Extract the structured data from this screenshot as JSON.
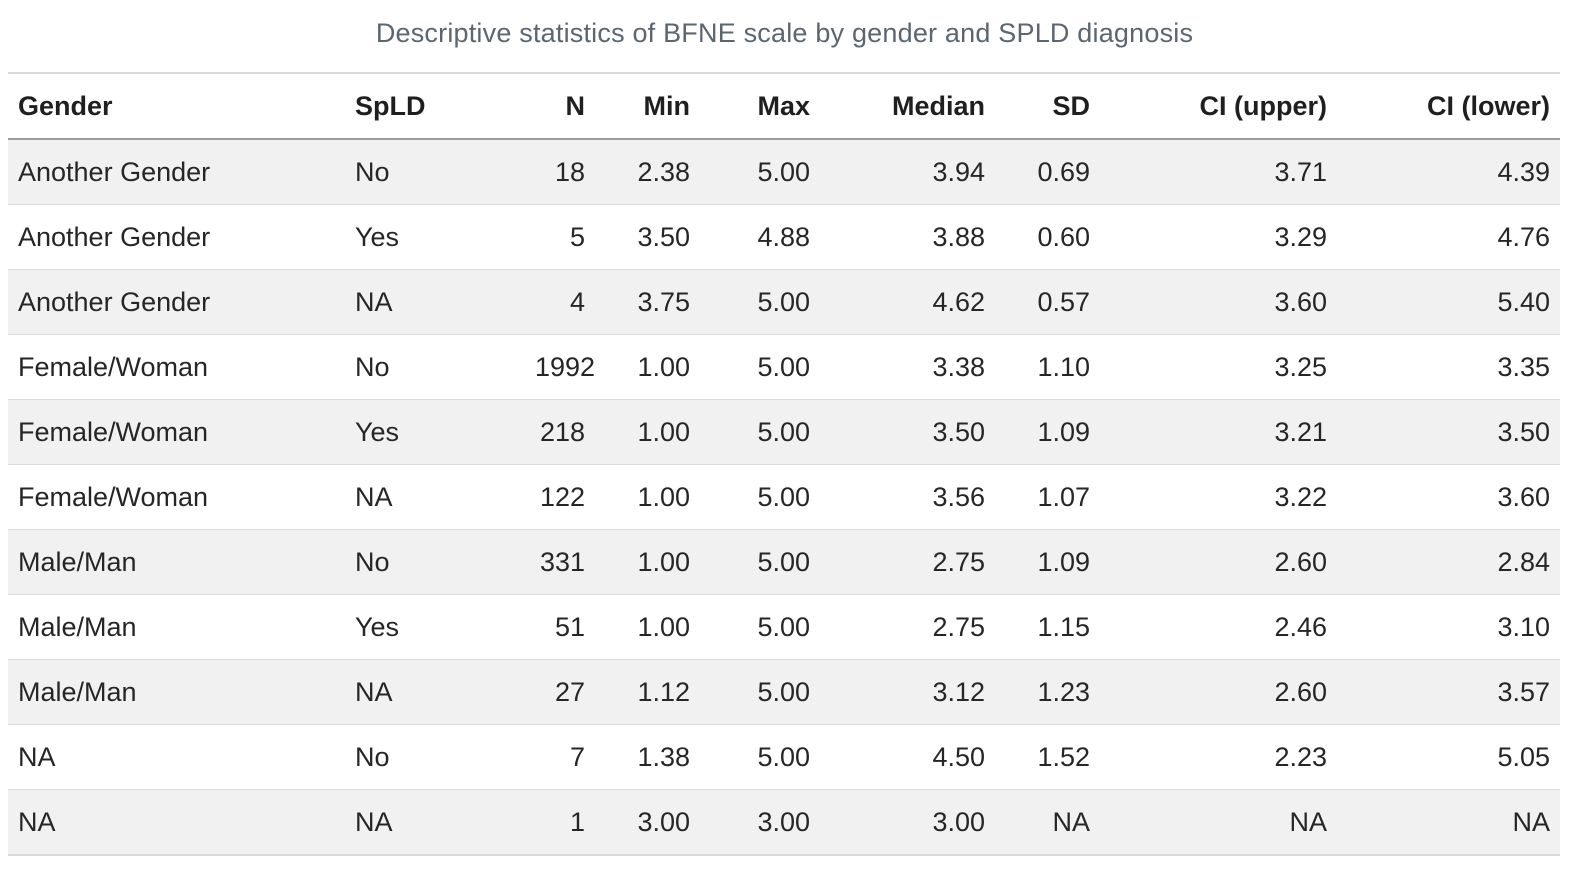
{
  "title": "Descriptive statistics of BFNE scale by gender and SPLD diagnosis",
  "chart_data": {
    "type": "table",
    "title": "Descriptive statistics of BFNE scale by gender and SPLD diagnosis",
    "columns": [
      "Gender",
      "SpLD",
      "N",
      "Min",
      "Max",
      "Median",
      "SD",
      "CI (upper)",
      "CI (lower)"
    ],
    "align": [
      "left",
      "left",
      "right",
      "right",
      "right",
      "right",
      "right",
      "right",
      "right"
    ],
    "rows": [
      [
        "Another Gender",
        "No",
        "18",
        "2.38",
        "5.00",
        "3.94",
        "0.69",
        "3.71",
        "4.39"
      ],
      [
        "Another Gender",
        "Yes",
        "5",
        "3.50",
        "4.88",
        "3.88",
        "0.60",
        "3.29",
        "4.76"
      ],
      [
        "Another Gender",
        "NA",
        "4",
        "3.75",
        "5.00",
        "4.62",
        "0.57",
        "3.60",
        "5.40"
      ],
      [
        "Female/Woman",
        "No",
        "1992",
        "1.00",
        "5.00",
        "3.38",
        "1.10",
        "3.25",
        "3.35"
      ],
      [
        "Female/Woman",
        "Yes",
        "218",
        "1.00",
        "5.00",
        "3.50",
        "1.09",
        "3.21",
        "3.50"
      ],
      [
        "Female/Woman",
        "NA",
        "122",
        "1.00",
        "5.00",
        "3.56",
        "1.07",
        "3.22",
        "3.60"
      ],
      [
        "Male/Man",
        "No",
        "331",
        "1.00",
        "5.00",
        "2.75",
        "1.09",
        "2.60",
        "2.84"
      ],
      [
        "Male/Man",
        "Yes",
        "51",
        "1.00",
        "5.00",
        "2.75",
        "1.15",
        "2.46",
        "3.10"
      ],
      [
        "Male/Man",
        "NA",
        "27",
        "1.12",
        "5.00",
        "3.12",
        "1.23",
        "2.60",
        "3.57"
      ],
      [
        "NA",
        "No",
        "7",
        "1.38",
        "5.00",
        "4.50",
        "1.52",
        "2.23",
        "5.05"
      ],
      [
        "NA",
        "NA",
        "1",
        "3.00",
        "3.00",
        "3.00",
        "NA",
        "NA",
        "NA"
      ]
    ]
  },
  "colors": {
    "title_text": "#5b6670",
    "row_stripe": "#f1f1f1",
    "header_rule": "#9b9b9b",
    "table_border": "#d9d9d9",
    "cell_text": "#262626"
  }
}
